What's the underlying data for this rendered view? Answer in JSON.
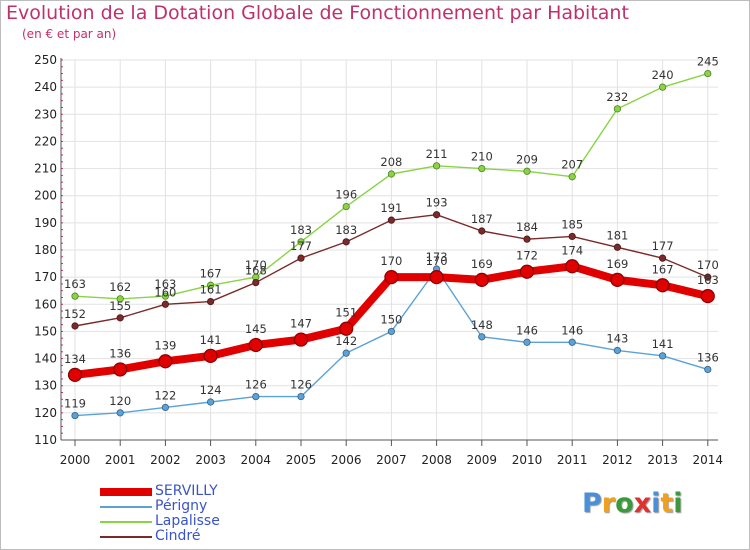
{
  "title": "Evolution de la Dotation Globale de Fonctionnement par Habitant",
  "subtitle": "(en € et par an)",
  "logo_text": "Proxiti",
  "chart_data": {
    "type": "line",
    "title": "Evolution de la Dotation Globale de Fonctionnement par Habitant",
    "subtitle": "(en € et par an)",
    "xlabel": "",
    "ylabel": "",
    "x": [
      2000,
      2001,
      2002,
      2003,
      2004,
      2005,
      2006,
      2007,
      2008,
      2009,
      2010,
      2011,
      2012,
      2013,
      2014
    ],
    "ylim": [
      110,
      250
    ],
    "yticks": [
      110,
      120,
      130,
      140,
      150,
      160,
      170,
      180,
      190,
      200,
      210,
      220,
      230,
      240,
      250
    ],
    "grid": true,
    "legend_position": "bottom-left",
    "series": [
      {
        "name": "SERVILLY",
        "color": "#e00000",
        "values": [
          134,
          136,
          139,
          141,
          145,
          147,
          151,
          170,
          170,
          169,
          172,
          174,
          169,
          167,
          163
        ]
      },
      {
        "name": "Périgny",
        "color": "#5aa2d8",
        "values": [
          119,
          120,
          122,
          124,
          126,
          126,
          142,
          150,
          173,
          148,
          146,
          146,
          143,
          141,
          136
        ]
      },
      {
        "name": "Lapalisse",
        "color": "#88d444",
        "values": [
          163,
          162,
          163,
          167,
          170,
          183,
          196,
          208,
          211,
          210,
          209,
          207,
          232,
          240,
          245
        ]
      },
      {
        "name": "Cindré",
        "color": "#7a2a2a",
        "values": [
          152,
          155,
          160,
          161,
          168,
          177,
          183,
          191,
          193,
          187,
          184,
          185,
          181,
          177,
          170
        ]
      }
    ]
  }
}
